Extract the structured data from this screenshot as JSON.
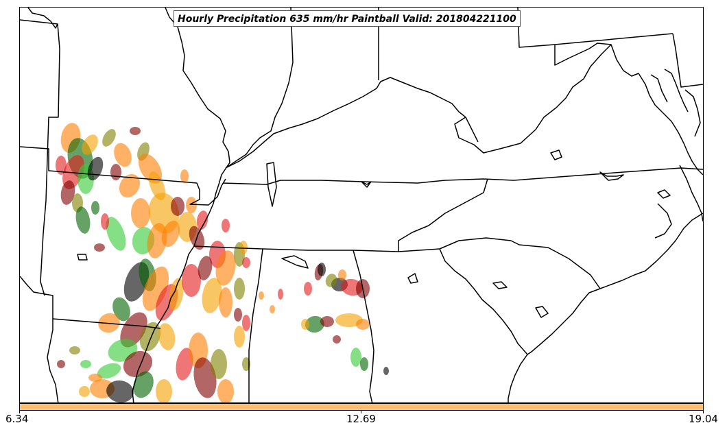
{
  "title": "Hourly Precipitation 635 mm/hr Paintball Valid: 201804221100",
  "colorbar": {
    "color": "#fdbf6f",
    "ticks": [
      "6.34",
      "12.69",
      "19.04"
    ]
  },
  "member_colors": [
    "#000000",
    "#e31a1c",
    "#33cc33",
    "#ff7f00",
    "#800000",
    "#f5a000",
    "#808000",
    "#006400"
  ]
}
